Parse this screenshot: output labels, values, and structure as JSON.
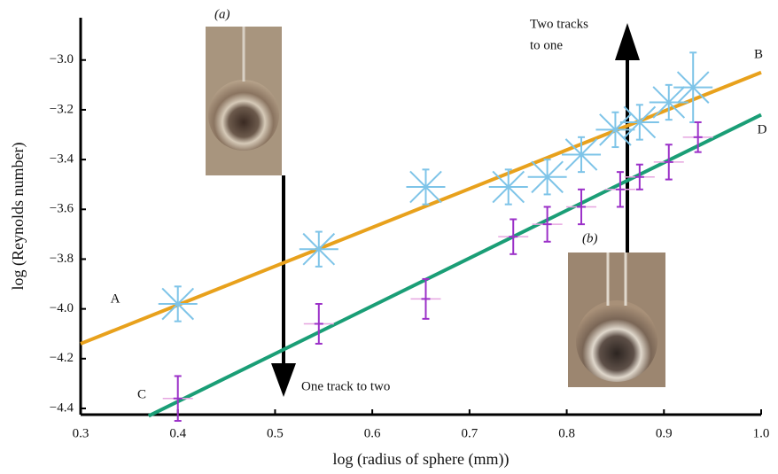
{
  "chart_data": {
    "type": "scatter",
    "xlabel": "log (radius of sphere (mm))",
    "ylabel": "log (Reynolds number)",
    "xlim": [
      0.3,
      1.0
    ],
    "ylim": [
      -4.425,
      -2.83
    ],
    "xticks": [
      0.3,
      0.4,
      0.5,
      0.6,
      0.7,
      0.8,
      0.9,
      {
        "value": 1.0,
        "label": "1.0"
      }
    ],
    "yticks": [
      {
        "value": -4.4,
        "label": "−4.4"
      },
      {
        "value": -4.2,
        "label": "−4.2"
      },
      {
        "value": -4.0,
        "label": "−4.0"
      },
      {
        "value": -3.8,
        "label": "−3.8"
      },
      {
        "value": -3.6,
        "label": "−3.6"
      },
      {
        "value": -3.4,
        "label": "−3.4"
      },
      {
        "value": -3.2,
        "label": "−3.2"
      },
      {
        "value": -3.0,
        "label": "−3.0"
      }
    ],
    "series": [
      {
        "marker": "star",
        "color": "#7ec4e8",
        "x": [
          0.4,
          0.545,
          0.655,
          0.74,
          0.78,
          0.815,
          0.85,
          0.875,
          0.905,
          0.93
        ],
        "values": [
          -3.98,
          -3.76,
          -3.51,
          -3.51,
          -3.47,
          -3.38,
          -3.28,
          -3.25,
          -3.17,
          -3.11
        ],
        "errors": [
          0.07,
          0.07,
          0.07,
          0.07,
          0.07,
          0.07,
          0.07,
          0.07,
          0.07,
          0.14
        ]
      },
      {
        "marker": "cross",
        "color": "#9b30c8",
        "x": [
          0.4,
          0.545,
          0.655,
          0.745,
          0.78,
          0.815,
          0.855,
          0.875,
          0.905,
          0.935
        ],
        "values": [
          -4.36,
          -4.06,
          -3.96,
          -3.71,
          -3.66,
          -3.59,
          -3.52,
          -3.47,
          -3.41,
          -3.31
        ],
        "errors": [
          0.09,
          0.08,
          0.08,
          0.07,
          0.07,
          0.07,
          0.07,
          0.05,
          0.07,
          0.06
        ]
      }
    ],
    "lines": [
      {
        "color": "#e8a11c",
        "x": [
          0.3,
          1.0
        ],
        "values": [
          -4.14,
          -3.05
        ],
        "labels": [
          "A",
          "B"
        ]
      },
      {
        "color": "#1a9e76",
        "x": [
          0.37,
          1.0
        ],
        "values": [
          -4.43,
          -3.22
        ],
        "labels": [
          "C",
          "D"
        ]
      }
    ],
    "annotations": [
      "(a)",
      "(b)",
      "One track to two",
      "Two tracks",
      "to one"
    ]
  }
}
